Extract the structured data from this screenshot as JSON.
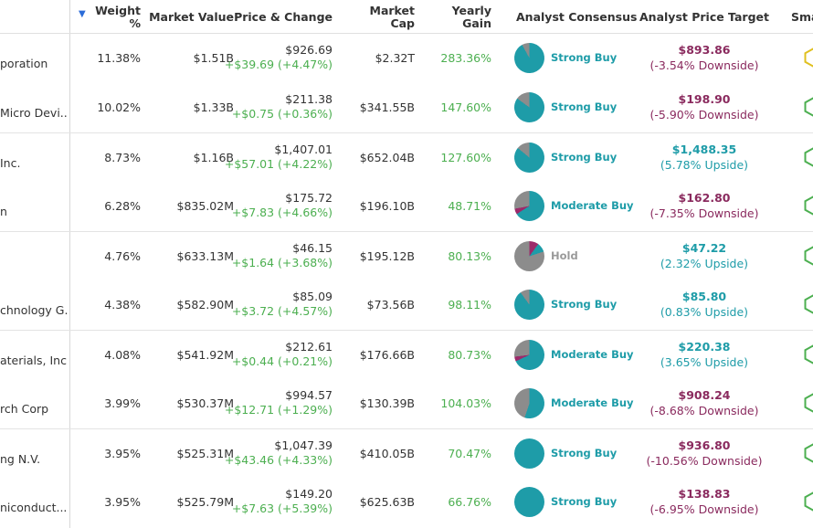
{
  "header": {
    "weight": "Weight %",
    "weight_line1": "Weight",
    "weight_line2": "%",
    "market_value": "Market Value",
    "price_change": "Price & Change",
    "market_cap_line1": "Market",
    "market_cap_line2": "Cap",
    "yearly_line1": "Yearly",
    "yearly_line2": "Gain",
    "consensus": "Analyst Consensus",
    "target": "Analyst Price Target",
    "smart": "Sma",
    "sort_icon": "sort-descending-icon"
  },
  "colors": {
    "positive": "#4caf50",
    "teal": "#1e9ca8",
    "negative": "#8a2a5e",
    "hold_gray": "#9a9a9a",
    "hex_positive": "#4caf50",
    "hex_neutral": "#e0c020"
  },
  "rows": [
    {
      "name": "poration",
      "weight": "11.38%",
      "market_value": "$1.51B",
      "price": "$926.69",
      "change": "+$39.69 (+4.47%)",
      "market_cap": "$2.32T",
      "yearly_gain": "283.36%",
      "consensus": "Strong Buy",
      "target_price": "$893.86",
      "target_pct": "(-3.54% Downside)",
      "target_dir": "neg",
      "pie": {
        "buy": 0.92,
        "hold": 0.08,
        "sell": 0
      },
      "smart_color": "#e0c020"
    },
    {
      "name": "Micro Devi...",
      "weight": "10.02%",
      "market_value": "$1.33B",
      "price": "$211.38",
      "change": "+$0.75 (+0.36%)",
      "market_cap": "$341.55B",
      "yearly_gain": "147.60%",
      "consensus": "Strong Buy",
      "target_price": "$198.90",
      "target_pct": "(-5.90% Downside)",
      "target_dir": "neg",
      "pie": {
        "buy": 0.85,
        "hold": 0.15,
        "sell": 0
      },
      "smart_color": "#4caf50"
    },
    {
      "name": "Inc.",
      "weight": "8.73%",
      "market_value": "$1.16B",
      "price": "$1,407.01",
      "change": "+$57.01 (+4.22%)",
      "market_cap": "$652.04B",
      "yearly_gain": "127.60%",
      "consensus": "Strong Buy",
      "target_price": "$1,488.35",
      "target_pct": "(5.78% Upside)",
      "target_dir": "pos",
      "pie": {
        "buy": 0.86,
        "hold": 0.14,
        "sell": 0
      },
      "smart_color": "#4caf50"
    },
    {
      "name": "n",
      "weight": "6.28%",
      "market_value": "$835.02M",
      "price": "$175.72",
      "change": "+$7.83 (+4.66%)",
      "market_cap": "$196.10B",
      "yearly_gain": "48.71%",
      "consensus": "Moderate Buy",
      "target_price": "$162.80",
      "target_pct": "(-7.35% Downside)",
      "target_dir": "neg",
      "pie": {
        "buy": 0.66,
        "hold": 0.28,
        "sell": 0.06
      },
      "smart_color": "#4caf50"
    },
    {
      "name": "",
      "weight": "4.76%",
      "market_value": "$633.13M",
      "price": "$46.15",
      "change": "+$1.64 (+3.68%)",
      "market_cap": "$195.12B",
      "yearly_gain": "80.13%",
      "consensus": "Hold",
      "target_price": "$47.22",
      "target_pct": "(2.32% Upside)",
      "target_dir": "pos",
      "pie": {
        "buy": 0.1,
        "hold": 0.8,
        "sell": 0.1
      },
      "smart_color": "#4caf50"
    },
    {
      "name": "chnology G...",
      "weight": "4.38%",
      "market_value": "$582.90M",
      "price": "$85.09",
      "change": "+$3.72 (+4.57%)",
      "market_cap": "$73.56B",
      "yearly_gain": "98.11%",
      "consensus": "Strong Buy",
      "target_price": "$85.80",
      "target_pct": "(0.83% Upside)",
      "target_dir": "pos",
      "pie": {
        "buy": 0.9,
        "hold": 0.1,
        "sell": 0
      },
      "smart_color": "#4caf50"
    },
    {
      "name": "aterials, Inc.",
      "weight": "4.08%",
      "market_value": "$541.92M",
      "price": "$212.61",
      "change": "+$0.44 (+0.21%)",
      "market_cap": "$176.66B",
      "yearly_gain": "80.73%",
      "consensus": "Moderate Buy",
      "target_price": "$220.38",
      "target_pct": "(3.65% Upside)",
      "target_dir": "pos",
      "pie": {
        "buy": 0.68,
        "hold": 0.27,
        "sell": 0.05
      },
      "smart_color": "#4caf50"
    },
    {
      "name": "rch Corp",
      "weight": "3.99%",
      "market_value": "$530.37M",
      "price": "$994.57",
      "change": "+$12.71 (+1.29%)",
      "market_cap": "$130.39B",
      "yearly_gain": "104.03%",
      "consensus": "Moderate Buy",
      "target_price": "$908.24",
      "target_pct": "(-8.68% Downside)",
      "target_dir": "neg",
      "pie": {
        "buy": 0.55,
        "hold": 0.45,
        "sell": 0
      },
      "smart_color": "#4caf50"
    },
    {
      "name": "ng N.V.",
      "weight": "3.95%",
      "market_value": "$525.31M",
      "price": "$1,047.39",
      "change": "+$43.46 (+4.33%)",
      "market_cap": "$410.05B",
      "yearly_gain": "70.47%",
      "consensus": "Strong Buy",
      "target_price": "$936.80",
      "target_pct": "(-10.56% Downside)",
      "target_dir": "neg",
      "pie": {
        "buy": 1.0,
        "hold": 0,
        "sell": 0
      },
      "smart_color": "#4caf50"
    },
    {
      "name": "niconduct...",
      "weight": "3.95%",
      "market_value": "$525.79M",
      "price": "$149.20",
      "change": "+$7.63 (+5.39%)",
      "market_cap": "$625.63B",
      "yearly_gain": "66.76%",
      "consensus": "Strong Buy",
      "target_price": "$138.83",
      "target_pct": "(-6.95% Downside)",
      "target_dir": "neg",
      "pie": {
        "buy": 1.0,
        "hold": 0,
        "sell": 0
      },
      "smart_color": "#4caf50"
    }
  ]
}
